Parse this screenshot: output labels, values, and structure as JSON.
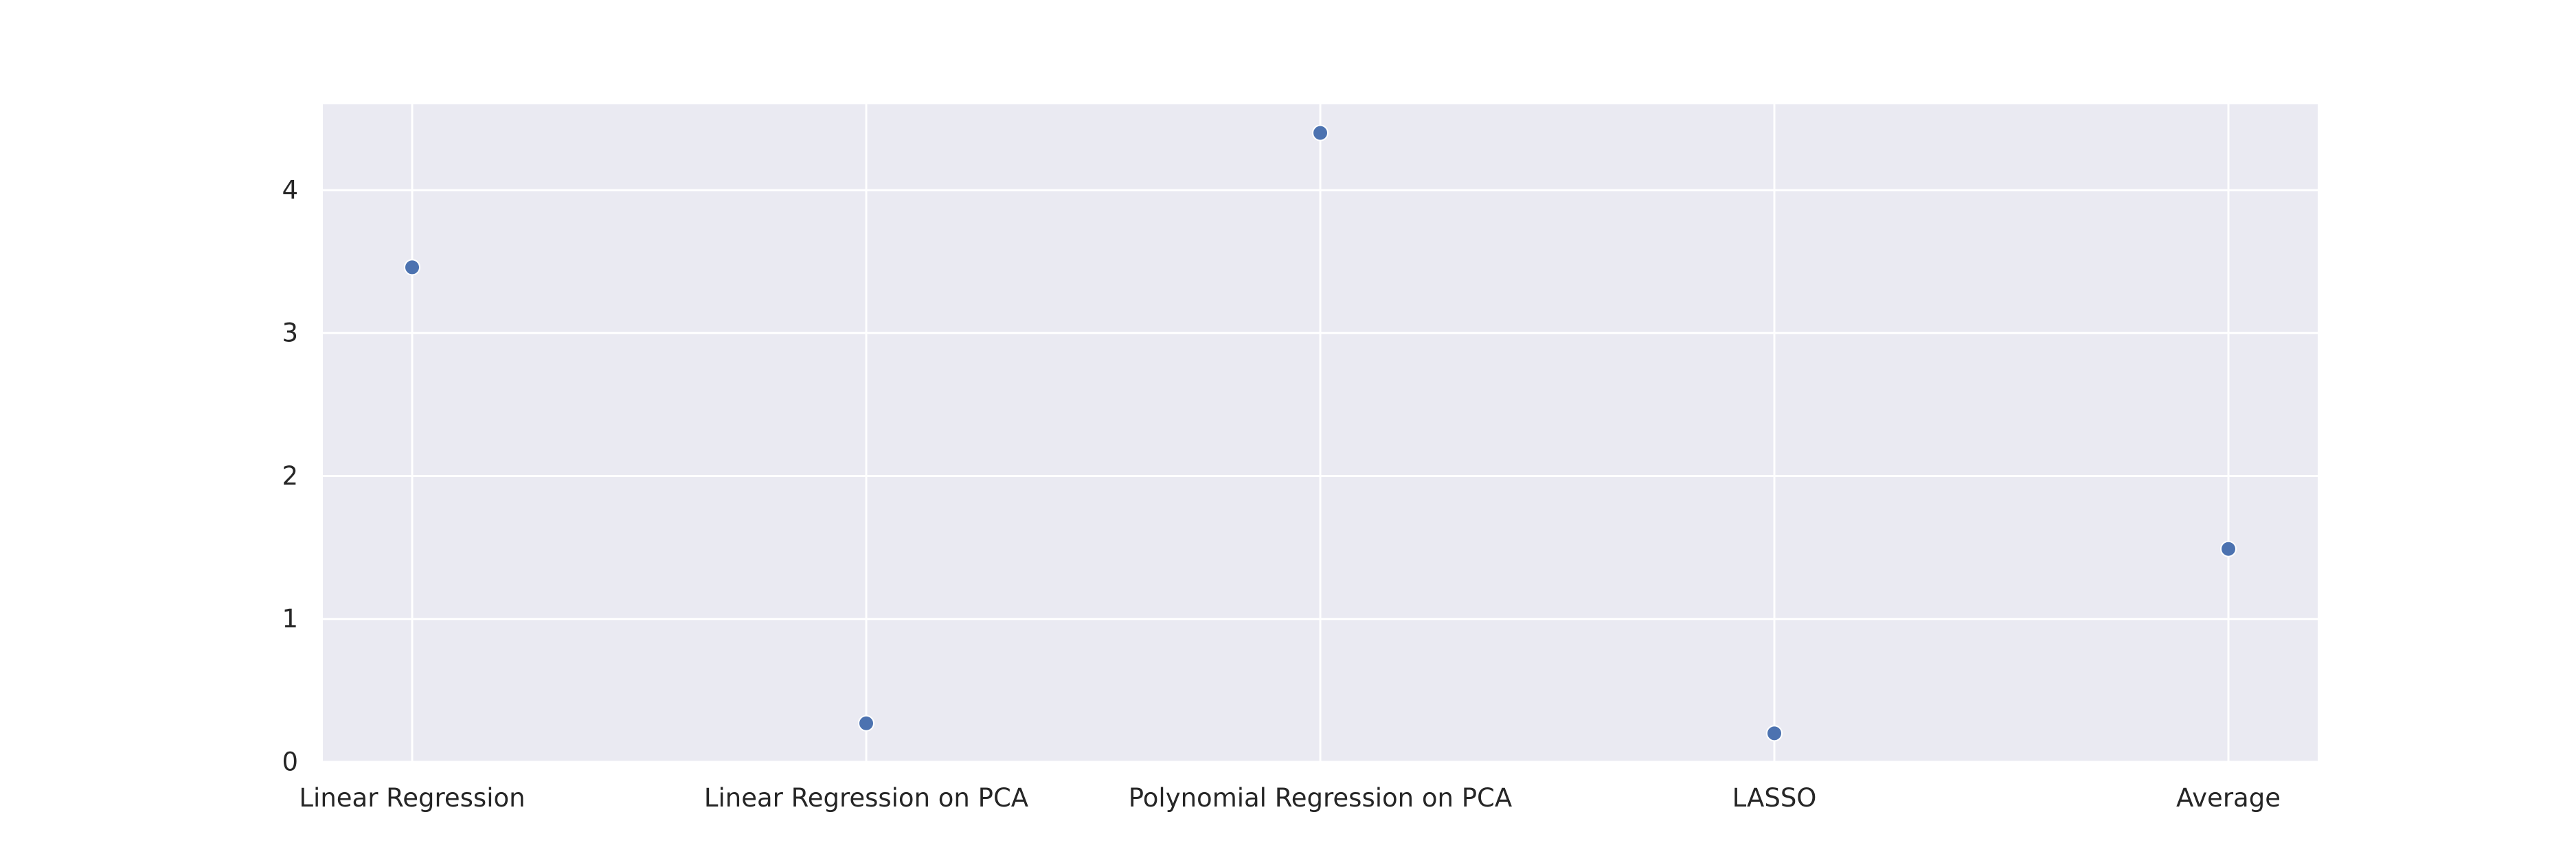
{
  "chart_data": {
    "type": "scatter",
    "title": "",
    "xlabel": "",
    "ylabel": "",
    "categories": [
      "Linear Regression",
      "Linear Regression on PCA",
      "Polynomial Regression on PCA",
      "LASSO",
      "Average"
    ],
    "values": [
      3.46,
      0.27,
      4.4,
      0.2,
      1.49
    ],
    "ylim": [
      0,
      4.6
    ],
    "yticks": [
      0,
      1,
      2,
      3,
      4
    ],
    "grid": true,
    "legend": "none",
    "colors": {
      "background": "#eaeaf2",
      "grid": "#ffffff",
      "marker": "#4c72b0",
      "marker_edge": "#ffffff",
      "text": "#262626"
    }
  }
}
